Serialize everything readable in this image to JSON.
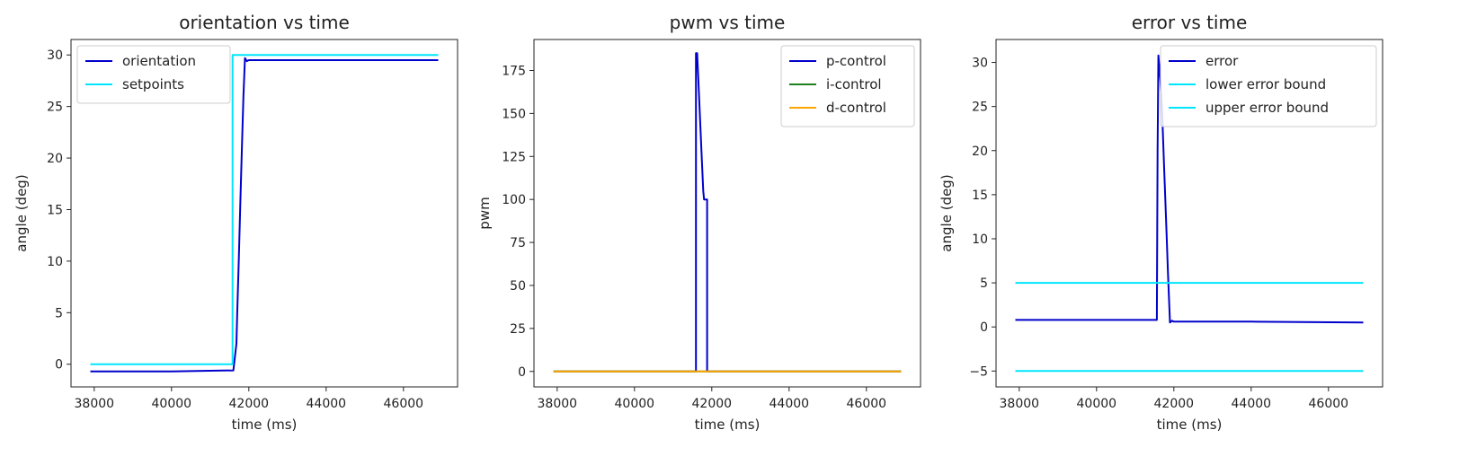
{
  "chart_data": [
    {
      "type": "line",
      "title": "orientation vs time",
      "xlabel": "time (ms)",
      "ylabel": "angle (deg)",
      "xlim": [
        37400,
        47400
      ],
      "ylim": [
        -2.2,
        31.5
      ],
      "xticks": [
        38000,
        40000,
        42000,
        44000,
        46000
      ],
      "yticks": [
        0,
        5,
        10,
        15,
        20,
        25,
        30
      ],
      "xtick_labels": [
        "38000",
        "40000",
        "42000",
        "44000",
        "46000"
      ],
      "ytick_labels": [
        "0",
        "5",
        "10",
        "15",
        "20",
        "25",
        "30"
      ],
      "legend": "top-left",
      "series": [
        {
          "name": "orientation",
          "color": "#0000cc",
          "x": [
            37900,
            40000,
            41600,
            41680,
            41700,
            41740,
            41780,
            41820,
            41860,
            41900,
            41950,
            42000,
            44000,
            46900
          ],
          "y": [
            -0.7,
            -0.7,
            -0.6,
            2.0,
            5.0,
            10.0,
            15.5,
            21.0,
            26.0,
            29.7,
            29.4,
            29.5,
            29.5,
            29.5
          ]
        },
        {
          "name": "setpoints",
          "color": "#00e5ff",
          "x": [
            37900,
            41580,
            41580,
            46900
          ],
          "y": [
            0,
            0,
            30,
            30
          ]
        }
      ]
    },
    {
      "type": "line",
      "title": "pwm vs time",
      "xlabel": "time (ms)",
      "ylabel": "pwm",
      "xlim": [
        37400,
        47400
      ],
      "ylim": [
        -9,
        193
      ],
      "xticks": [
        38000,
        40000,
        42000,
        44000,
        46000
      ],
      "yticks": [
        0,
        25,
        50,
        75,
        100,
        125,
        150,
        175
      ],
      "xtick_labels": [
        "38000",
        "40000",
        "42000",
        "44000",
        "46000"
      ],
      "ytick_labels": [
        "0",
        "25",
        "50",
        "75",
        "100",
        "125",
        "150",
        "175"
      ],
      "legend": "top-right",
      "series": [
        {
          "name": "p-control",
          "color": "#0000cc",
          "x": [
            37900,
            41590,
            41590,
            41620,
            41650,
            41700,
            41750,
            41780,
            41800,
            41850,
            41850,
            41880,
            41880,
            46900
          ],
          "y": [
            0,
            0,
            185,
            185,
            170,
            145,
            120,
            105,
            100,
            100,
            100,
            100,
            0,
            0
          ]
        },
        {
          "name": "i-control",
          "color": "#1e7f1e",
          "x": [
            37900,
            46900
          ],
          "y": [
            0,
            0
          ]
        },
        {
          "name": "d-control",
          "color": "#ffa500",
          "x": [
            37900,
            46900
          ],
          "y": [
            0,
            0
          ]
        }
      ]
    },
    {
      "type": "line",
      "title": "error vs time",
      "xlabel": "time (ms)",
      "ylabel": "angle (deg)",
      "xlim": [
        37400,
        47400
      ],
      "ylim": [
        -6.8,
        32.6
      ],
      "xticks": [
        38000,
        40000,
        42000,
        44000,
        46000
      ],
      "yticks": [
        -5,
        0,
        5,
        10,
        15,
        20,
        25,
        30
      ],
      "xtick_labels": [
        "38000",
        "40000",
        "42000",
        "44000",
        "46000"
      ],
      "ytick_labels": [
        "−5",
        "0",
        "5",
        "10",
        "15",
        "20",
        "25",
        "30"
      ],
      "legend": "top-right",
      "series": [
        {
          "name": "error",
          "color": "#0000cc",
          "x": [
            37900,
            40000,
            41560,
            41580,
            41600,
            41650,
            41700,
            41750,
            41800,
            41850,
            41900,
            41950,
            42000,
            44000,
            46900
          ],
          "y": [
            0.8,
            0.8,
            0.8,
            20,
            30.8,
            28,
            24,
            18,
            12,
            6,
            0.5,
            0.7,
            0.6,
            0.6,
            0.5
          ]
        },
        {
          "name": "lower error bound",
          "color": "#00e5ff",
          "x": [
            37900,
            46900
          ],
          "y": [
            -5,
            -5
          ]
        },
        {
          "name": "upper error bound",
          "color": "#00e5ff",
          "x": [
            37900,
            46900
          ],
          "y": [
            5,
            5
          ]
        }
      ]
    }
  ]
}
